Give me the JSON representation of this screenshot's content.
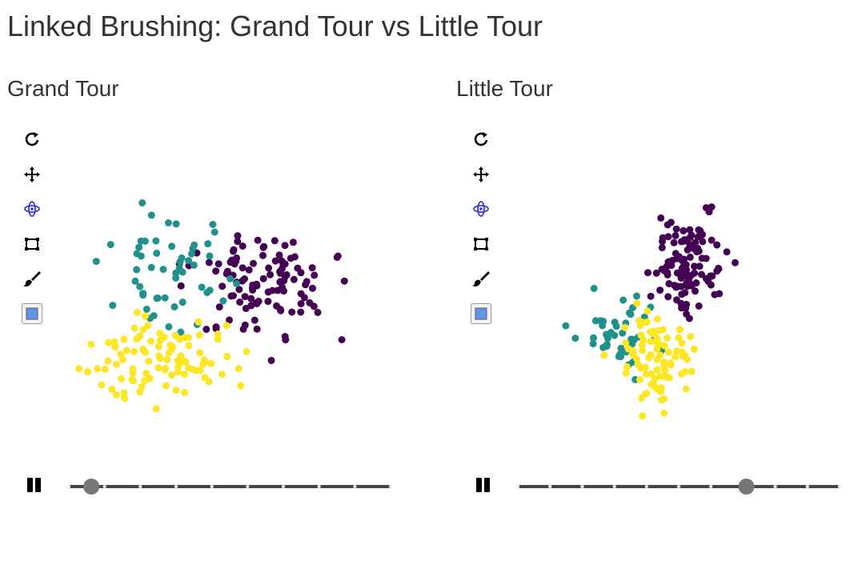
{
  "page": {
    "title": "Linked Brushing: Grand Tour vs Little Tour"
  },
  "colors": {
    "cluster_0": "#440154",
    "cluster_1": "#21918c",
    "cluster_2": "#fde725",
    "tool_active": "#3b3bd9",
    "color_swatch": "#6495ed",
    "slider_track": "#444444",
    "slider_thumb": "#777777"
  },
  "tools": [
    {
      "name": "reset-icon",
      "active": false
    },
    {
      "name": "pan-icon",
      "active": false
    },
    {
      "name": "rotate-icon",
      "active": true
    },
    {
      "name": "select-box-icon",
      "active": false
    },
    {
      "name": "brush-icon",
      "active": false
    },
    {
      "name": "color-swatch-icon",
      "active": false
    }
  ],
  "panels": [
    {
      "title": "Grand Tour",
      "playing": true,
      "slider": {
        "value": 0.07,
        "ticks": 9
      }
    },
    {
      "title": "Little Tour",
      "playing": true,
      "slider": {
        "value": 0.71,
        "ticks": 10
      }
    }
  ]
}
